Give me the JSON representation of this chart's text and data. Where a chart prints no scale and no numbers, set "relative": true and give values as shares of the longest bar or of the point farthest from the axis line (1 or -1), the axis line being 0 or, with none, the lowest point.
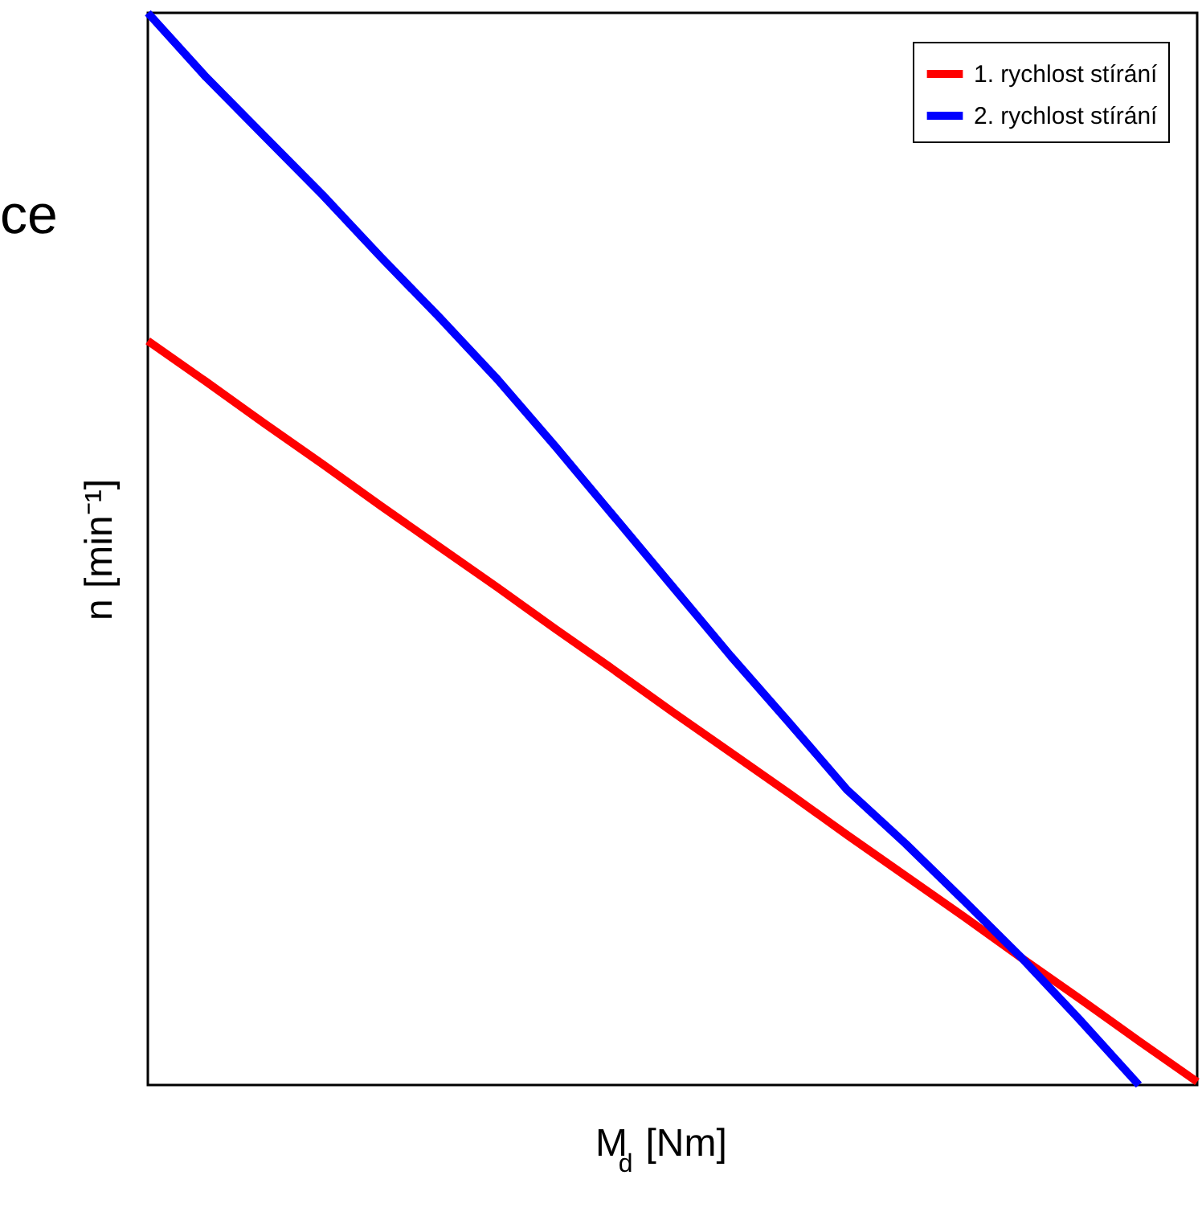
{
  "chart_data": {
    "type": "line",
    "relative": true,
    "xlabel": "M$_{d}$ [Nm]",
    "ylabel": "n [min⁻¹]",
    "annotations": [
      "ce"
    ],
    "legend": "top right",
    "categories": [
      null,
      null,
      null,
      null,
      null,
      null,
      null,
      null,
      null,
      null,
      null,
      null,
      null,
      null,
      null,
      null,
      null,
      null,
      null
    ],
    "series": [
      {
        "name": "1. rychlost stírání",
        "color": "#ff0000",
        "values": [
          0.694,
          0.656,
          0.617,
          0.579,
          0.54,
          0.502,
          0.464,
          0.425,
          0.387,
          0.348,
          0.31,
          0.272,
          0.233,
          0.195,
          0.157,
          0.118,
          0.08,
          0.041,
          0.003
        ]
      },
      {
        "name": "2. rychlost stírání",
        "color": "#0000ff",
        "values": [
          1,
          0.94,
          0.885,
          0.83,
          0.772,
          0.716,
          0.658,
          0.595,
          0.53,
          0.465,
          0.4,
          0.338,
          0.275,
          0.225,
          0.172,
          0.118,
          0.06,
          0,
          null
        ]
      }
    ]
  }
}
